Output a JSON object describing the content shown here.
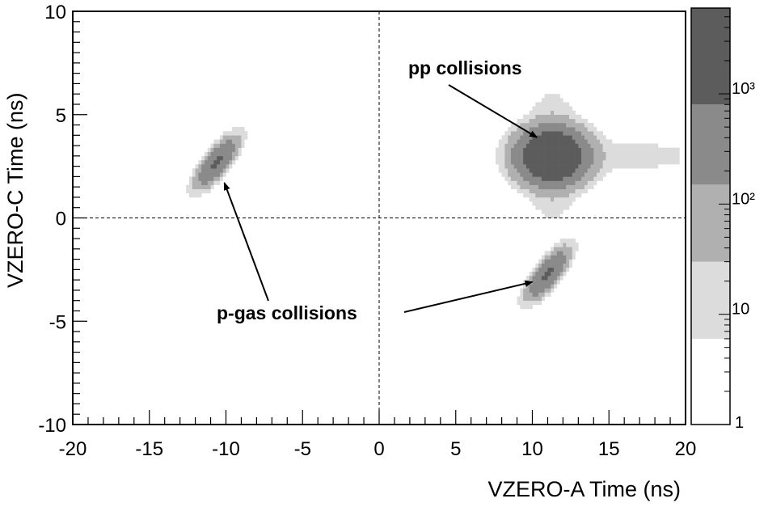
{
  "chart_data": {
    "type": "heatmap",
    "xlabel": "VZERO-A Time (ns)",
    "ylabel": "VZERO-C Time (ns)",
    "xlim": [
      -20,
      20
    ],
    "ylim": [
      -10,
      10
    ],
    "x_ticks": [
      "-20",
      "-15",
      "-10",
      "-5",
      "0",
      "5",
      "10",
      "15",
      "20"
    ],
    "y_ticks": [
      "-10",
      "-5",
      "0",
      "5",
      "10"
    ],
    "x_tick_values": [
      -20,
      -15,
      -10,
      -5,
      0,
      5,
      10,
      15,
      20
    ],
    "y_tick_values": [
      -10,
      -5,
      0,
      5,
      10
    ],
    "reference_lines": {
      "x": 0,
      "y": 0
    },
    "colorbar": {
      "scale": "log",
      "labels": [
        "1",
        "10",
        "10²",
        "10³"
      ],
      "label_values": [
        1,
        10,
        100,
        1000
      ],
      "max": 6000,
      "band_edges": [
        6,
        30,
        150,
        800,
        6000
      ],
      "band_colors": [
        "#dcdcdc",
        "#b0b0b0",
        "#8a8a8a",
        "#5c5c5c",
        "#353535"
      ]
    },
    "clusters": [
      {
        "name": "pp",
        "center": [
          11.3,
          3.0
        ],
        "sigma_x": 1.0,
        "sigma_y": 0.6,
        "peak": 5000,
        "tail_to_x": 19.5
      },
      {
        "name": "p-gas-left",
        "center": [
          -10.6,
          2.7
        ],
        "sigma_x": 0.45,
        "sigma_y": 0.5,
        "peak": 1000,
        "tilt": 0.85
      },
      {
        "name": "p-gas-right",
        "center": [
          11.0,
          -2.7
        ],
        "sigma_x": 0.45,
        "sigma_y": 0.5,
        "peak": 1000,
        "tilt": 0.85
      }
    ],
    "annotations": [
      {
        "text": "pp collisions",
        "arrow_to": [
          10.3,
          3.9
        ]
      },
      {
        "text": "p-gas collisions",
        "arrow_to_left": [
          -10.1,
          1.7
        ],
        "arrow_to_right": [
          10.0,
          -3.1
        ]
      }
    ]
  }
}
